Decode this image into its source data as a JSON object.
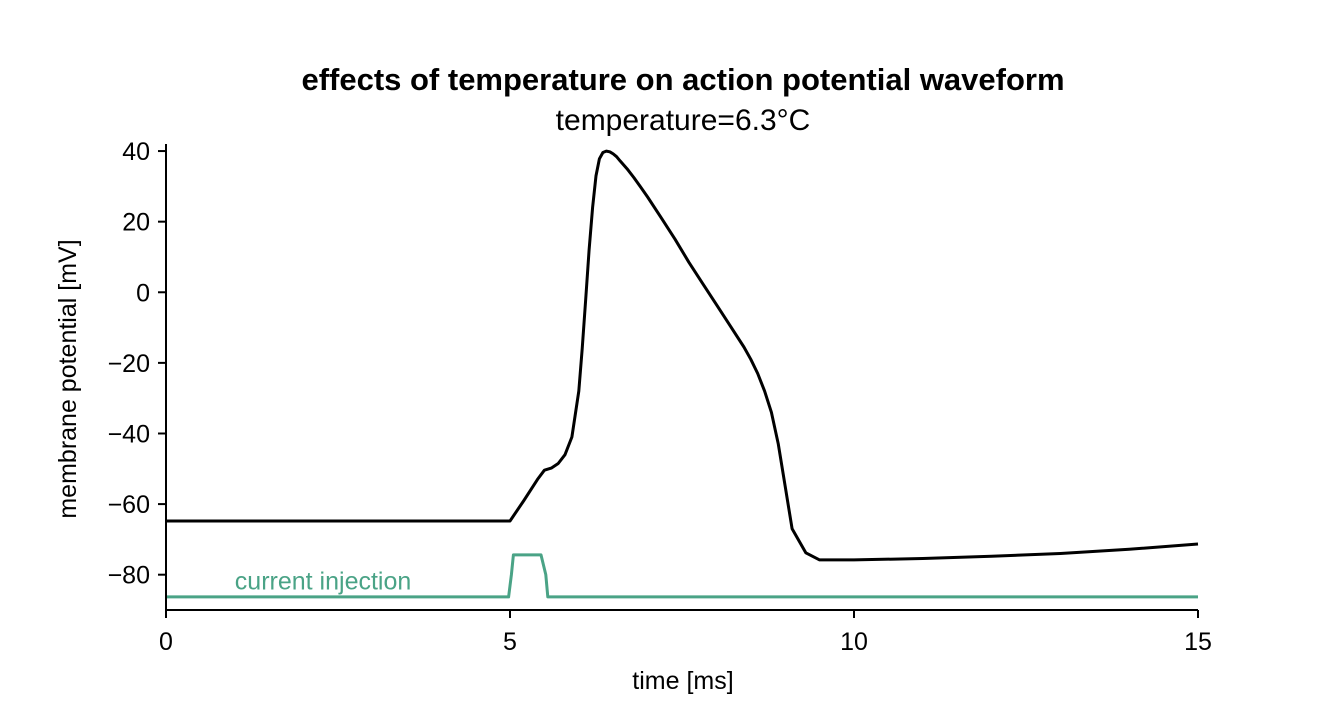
{
  "chart_data": {
    "type": "line",
    "title": "effects of temperature on action potential waveform",
    "subtitle": "temperature=6.3°C",
    "xlabel": "time [ms]",
    "ylabel": "membrane potential [mV]",
    "xlim": [
      0,
      15
    ],
    "ylim": [
      -90,
      42
    ],
    "xticks": [
      0,
      5,
      10,
      15
    ],
    "xtick_labels": [
      "0",
      "5",
      "10",
      "15"
    ],
    "yticks": [
      40,
      20,
      0,
      -20,
      -40,
      -60,
      -80
    ],
    "ytick_labels": [
      "40",
      "20",
      "0",
      "−20",
      "−40",
      "−60",
      "−80"
    ],
    "grid": false,
    "series": [
      {
        "color": "#000000",
        "x": [
          0,
          5.0,
          5.2,
          5.4,
          5.5,
          5.6,
          5.7,
          5.8,
          5.9,
          6.0,
          6.05,
          6.1,
          6.15,
          6.2,
          6.25,
          6.3,
          6.35,
          6.4,
          6.45,
          6.5,
          6.55,
          6.6,
          6.7,
          6.8,
          6.9,
          7.0,
          7.2,
          7.4,
          7.6,
          7.8,
          8.0,
          8.2,
          8.4,
          8.5,
          8.6,
          8.7,
          8.8,
          8.9,
          9.0,
          9.1,
          9.3,
          9.5,
          10,
          11,
          12,
          13,
          14,
          15
        ],
        "y": [
          -64.8,
          -64.8,
          -59,
          -53,
          -50.4,
          -49.8,
          -48.5,
          -46,
          -41,
          -28,
          -16,
          -2,
          12,
          24,
          33,
          37.8,
          39.6,
          40,
          39.8,
          39.2,
          38.4,
          37.2,
          35,
          32.5,
          29.8,
          27,
          21,
          15,
          8.5,
          2.5,
          -3.5,
          -9.5,
          -15.5,
          -19,
          -23,
          -28,
          -34,
          -43,
          -55,
          -67,
          -73.8,
          -75.8,
          -75.8,
          -75.4,
          -74.8,
          -74,
          -72.8,
          -71.3
        ]
      },
      {
        "color": "#4aa386",
        "x": [
          0,
          4.98,
          5.02,
          5.05,
          5.45,
          5.52,
          5.55,
          15
        ],
        "y": [
          -86.3,
          -86.3,
          -80,
          -74.4,
          -74.4,
          -80,
          -86.3,
          -86.3
        ]
      }
    ],
    "annotations": [
      {
        "text": "current injection",
        "x": 1.0,
        "y": -84.2,
        "color": "#4aa386"
      }
    ]
  }
}
